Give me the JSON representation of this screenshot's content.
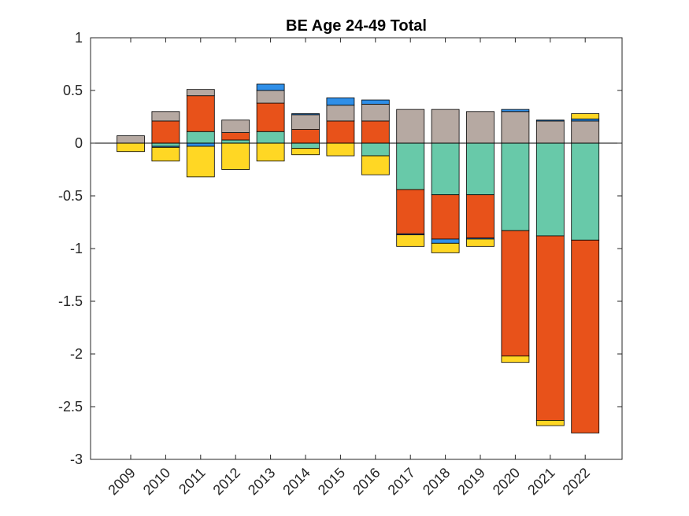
{
  "chart_data": {
    "type": "bar",
    "stacked": true,
    "title": "BE  Age 24-49  Total",
    "xlabel": "",
    "ylabel": "",
    "ylim": [
      -3,
      1
    ],
    "yticks": [
      -3,
      -2.5,
      -2,
      -1.5,
      -1,
      -0.5,
      0,
      0.5,
      1
    ],
    "ytick_labels": [
      "-3",
      "-2.5",
      "-2",
      "-1.5",
      "-1",
      "-0.5",
      "0",
      "0.5",
      "1"
    ],
    "categories": [
      "2009",
      "2010",
      "2011",
      "2012",
      "2013",
      "2014",
      "2015",
      "2016",
      "2017",
      "2018",
      "2019",
      "2020",
      "2021",
      "2022"
    ],
    "grid": false,
    "legend": "none",
    "series": [
      {
        "color": "#68C9A9",
        "values": [
          0,
          -0.03,
          0.11,
          0.03,
          0.11,
          -0.05,
          0,
          -0.12,
          -0.44,
          -0.49,
          -0.49,
          -0.83,
          -0.88,
          -0.92
        ]
      },
      {
        "color": "#E8521A",
        "values": [
          0,
          0.21,
          0.34,
          0.07,
          0.27,
          0.13,
          0.21,
          0.21,
          -0.42,
          -0.42,
          -0.41,
          -1.19,
          -1.75,
          -1.83
        ]
      },
      {
        "color": "#B6A9A2",
        "values": [
          0.07,
          0.09,
          0.06,
          0.12,
          0.12,
          0.14,
          0.15,
          0.16,
          0.32,
          0.32,
          0.3,
          0.3,
          0.21,
          0.21
        ]
      },
      {
        "color": "#2F8FE8",
        "values": [
          0,
          -0.01,
          -0.03,
          0,
          0.06,
          0.01,
          0.07,
          0.04,
          -0.01,
          -0.04,
          -0.01,
          0.02,
          0.01,
          0.02
        ]
      },
      {
        "color": "#FFD724",
        "values": [
          -0.08,
          -0.13,
          -0.29,
          -0.25,
          -0.17,
          -0.06,
          -0.12,
          -0.18,
          -0.11,
          -0.09,
          -0.07,
          -0.06,
          -0.05,
          0.05
        ]
      }
    ]
  }
}
